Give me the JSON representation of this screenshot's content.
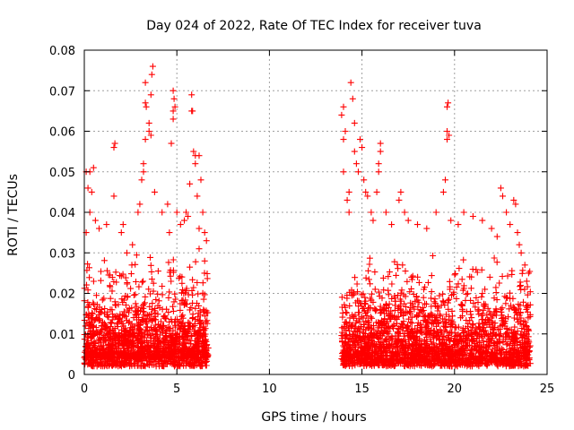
{
  "chart_data": {
    "type": "scatter",
    "title": "Day 024 of 2022, Rate Of TEC Index for receiver tuva",
    "xlabel": "GPS time / hours",
    "ylabel": "ROTI / TECUs",
    "xlim": [
      0,
      25
    ],
    "ylim": [
      0,
      0.08
    ],
    "x_ticks": [
      "0",
      "5",
      "10",
      "15",
      "20",
      "25"
    ],
    "x_tick_values": [
      0,
      5,
      10,
      15,
      20,
      25
    ],
    "y_ticks": [
      "0",
      "0.01",
      "0.02",
      "0.03",
      "0.04",
      "0.05",
      "0.06",
      "0.07",
      "0.08"
    ],
    "y_tick_values": [
      0,
      0.01,
      0.02,
      0.03,
      0.04,
      0.05,
      0.06,
      0.07,
      0.08
    ],
    "grid": true,
    "marker": "plus",
    "color": "#ff0000",
    "series": [
      {
        "points": [
          [
            0.1,
            0.05
          ],
          [
            0.2,
            0.046
          ],
          [
            0.3,
            0.05
          ],
          [
            0.4,
            0.045
          ],
          [
            0.5,
            0.051
          ],
          [
            0.3,
            0.04
          ],
          [
            0.1,
            0.035
          ],
          [
            0.6,
            0.038
          ],
          [
            0.8,
            0.036
          ],
          [
            1.2,
            0.037
          ],
          [
            1.6,
            0.044
          ],
          [
            1.6,
            0.056
          ],
          [
            1.65,
            0.057
          ],
          [
            2.0,
            0.035
          ],
          [
            2.1,
            0.037
          ],
          [
            2.3,
            0.03
          ],
          [
            2.6,
            0.032
          ],
          [
            2.9,
            0.04
          ],
          [
            3.0,
            0.042
          ],
          [
            3.1,
            0.048
          ],
          [
            3.2,
            0.05
          ],
          [
            3.2,
            0.052
          ],
          [
            3.3,
            0.058
          ],
          [
            3.3,
            0.067
          ],
          [
            3.35,
            0.066
          ],
          [
            3.3,
            0.072
          ],
          [
            3.5,
            0.06
          ],
          [
            3.5,
            0.062
          ],
          [
            3.6,
            0.069
          ],
          [
            3.65,
            0.074
          ],
          [
            3.7,
            0.076
          ],
          [
            3.6,
            0.059
          ],
          [
            3.8,
            0.045
          ],
          [
            4.2,
            0.04
          ],
          [
            4.5,
            0.042
          ],
          [
            4.7,
            0.057
          ],
          [
            4.8,
            0.063
          ],
          [
            4.8,
            0.065
          ],
          [
            4.9,
            0.066
          ],
          [
            4.85,
            0.068
          ],
          [
            4.8,
            0.07
          ],
          [
            4.6,
            0.035
          ],
          [
            5.0,
            0.04
          ],
          [
            5.2,
            0.037
          ],
          [
            5.4,
            0.038
          ],
          [
            5.8,
            0.069
          ],
          [
            5.8,
            0.065
          ],
          [
            5.85,
            0.065
          ],
          [
            5.9,
            0.055
          ],
          [
            6.0,
            0.054
          ],
          [
            6.2,
            0.054
          ],
          [
            6.0,
            0.052
          ],
          [
            5.7,
            0.047
          ],
          [
            6.3,
            0.048
          ],
          [
            6.1,
            0.044
          ],
          [
            6.4,
            0.04
          ],
          [
            6.5,
            0.035
          ],
          [
            6.6,
            0.033
          ],
          [
            6.2,
            0.036
          ],
          [
            5.5,
            0.04
          ],
          [
            5.6,
            0.039
          ],
          [
            6.2,
            0.031
          ],
          [
            6.5,
            0.028
          ],
          [
            13.9,
            0.064
          ],
          [
            14.0,
            0.066
          ],
          [
            14.0,
            0.058
          ],
          [
            14.1,
            0.06
          ],
          [
            14.0,
            0.05
          ],
          [
            14.2,
            0.043
          ],
          [
            14.3,
            0.045
          ],
          [
            14.3,
            0.04
          ],
          [
            14.4,
            0.072
          ],
          [
            14.5,
            0.068
          ],
          [
            14.6,
            0.062
          ],
          [
            14.6,
            0.055
          ],
          [
            14.7,
            0.052
          ],
          [
            14.8,
            0.05
          ],
          [
            14.9,
            0.058
          ],
          [
            15.0,
            0.056
          ],
          [
            15.1,
            0.048
          ],
          [
            15.2,
            0.045
          ],
          [
            15.3,
            0.044
          ],
          [
            15.5,
            0.04
          ],
          [
            15.6,
            0.038
          ],
          [
            15.8,
            0.045
          ],
          [
            15.9,
            0.05
          ],
          [
            16.0,
            0.057
          ],
          [
            16.0,
            0.055
          ],
          [
            15.9,
            0.052
          ],
          [
            16.3,
            0.04
          ],
          [
            16.6,
            0.037
          ],
          [
            17.0,
            0.043
          ],
          [
            17.1,
            0.045
          ],
          [
            17.3,
            0.04
          ],
          [
            17.5,
            0.038
          ],
          [
            18.0,
            0.037
          ],
          [
            18.5,
            0.036
          ],
          [
            19.0,
            0.04
          ],
          [
            19.4,
            0.045
          ],
          [
            19.5,
            0.048
          ],
          [
            19.6,
            0.058
          ],
          [
            19.6,
            0.06
          ],
          [
            19.7,
            0.059
          ],
          [
            19.6,
            0.066
          ],
          [
            19.65,
            0.067
          ],
          [
            19.8,
            0.038
          ],
          [
            20.2,
            0.037
          ],
          [
            20.5,
            0.04
          ],
          [
            21.0,
            0.039
          ],
          [
            21.5,
            0.038
          ],
          [
            22.0,
            0.036
          ],
          [
            22.3,
            0.034
          ],
          [
            22.5,
            0.046
          ],
          [
            22.6,
            0.044
          ],
          [
            22.8,
            0.04
          ],
          [
            23.0,
            0.037
          ],
          [
            23.2,
            0.043
          ],
          [
            23.3,
            0.042
          ],
          [
            23.4,
            0.035
          ],
          [
            23.5,
            0.032
          ],
          [
            23.6,
            0.03
          ],
          [
            23.8,
            0.027
          ],
          [
            24.0,
            0.025
          ],
          [
            23.9,
            0.023
          ]
        ],
        "bands": [
          {
            "x_range": [
              0.0,
              6.7
            ],
            "y_range": [
              0.002,
              0.03
            ],
            "count": 900
          },
          {
            "x_range": [
              0.0,
              6.7
            ],
            "y_range": [
              0.004,
              0.018
            ],
            "count": 700
          },
          {
            "x_range": [
              13.9,
              24.1
            ],
            "y_range": [
              0.002,
              0.03
            ],
            "count": 1300
          },
          {
            "x_range": [
              13.9,
              24.1
            ],
            "y_range": [
              0.003,
              0.02
            ],
            "count": 900
          }
        ]
      }
    ]
  }
}
